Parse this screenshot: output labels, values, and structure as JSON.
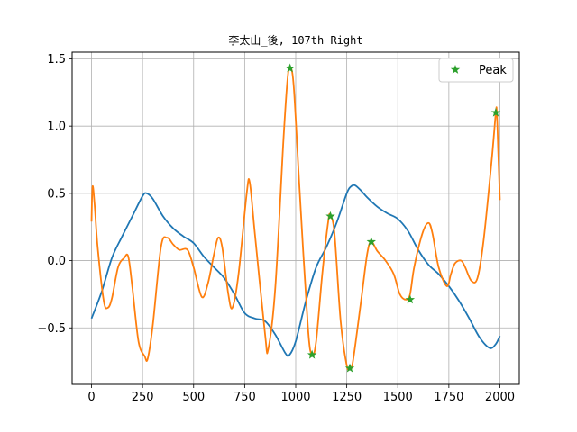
{
  "chart_data": {
    "type": "line",
    "title": "李太山_後, 107th Right",
    "xlabel": "",
    "ylabel": "",
    "xlim": [
      -95,
      2095
    ],
    "ylim": [
      -0.92,
      1.55
    ],
    "xticks": [
      0,
      250,
      500,
      750,
      1000,
      1250,
      1500,
      1750,
      2000
    ],
    "yticks": [
      -0.5,
      0.0,
      0.5,
      1.0,
      1.5
    ],
    "ytick_labels": [
      "−0.5",
      "0.0",
      "0.5",
      "1.0",
      "1.5"
    ],
    "grid": true,
    "legend": {
      "placement": "top-right",
      "entries": [
        "Peak"
      ]
    },
    "series": [
      {
        "color": "#1f77b4",
        "x": [
          0,
          50,
          100,
          150,
          200,
          250,
          270,
          300,
          350,
          400,
          450,
          500,
          550,
          600,
          650,
          700,
          750,
          800,
          850,
          900,
          950,
          970,
          1000,
          1050,
          1100,
          1150,
          1200,
          1250,
          1270,
          1290,
          1320,
          1350,
          1400,
          1450,
          1500,
          1550,
          1600,
          1650,
          1700,
          1750,
          1800,
          1850,
          1900,
          1950,
          1980,
          2000
        ],
        "y": [
          -0.43,
          -0.23,
          0.02,
          0.18,
          0.33,
          0.48,
          0.5,
          0.46,
          0.33,
          0.24,
          0.18,
          0.13,
          0.03,
          -0.05,
          -0.13,
          -0.25,
          -0.39,
          -0.43,
          -0.45,
          -0.55,
          -0.69,
          -0.7,
          -0.6,
          -0.3,
          -0.05,
          0.1,
          0.28,
          0.5,
          0.55,
          0.56,
          0.52,
          0.47,
          0.4,
          0.35,
          0.31,
          0.22,
          0.08,
          -0.03,
          -0.1,
          -0.19,
          -0.3,
          -0.43,
          -0.57,
          -0.65,
          -0.62,
          -0.56
        ]
      },
      {
        "color": "#ff7f0e",
        "x": [
          0,
          5,
          15,
          30,
          60,
          80,
          100,
          130,
          160,
          180,
          200,
          230,
          260,
          275,
          300,
          340,
          370,
          400,
          430,
          470,
          500,
          540,
          570,
          600,
          620,
          640,
          670,
          690,
          720,
          760,
          775,
          800,
          850,
          865,
          900,
          940,
          960,
          972,
          990,
          1020,
          1060,
          1080,
          1100,
          1130,
          1160,
          1170,
          1190,
          1220,
          1250,
          1265,
          1280,
          1320,
          1350,
          1370,
          1400,
          1440,
          1480,
          1510,
          1540,
          1560,
          1580,
          1620,
          1650,
          1670,
          1700,
          1740,
          1760,
          1780,
          1810,
          1830,
          1860,
          1890,
          1920,
          1960,
          1980,
          1985,
          1992,
          2000
        ],
        "y": [
          0.29,
          0.55,
          0.42,
          0.1,
          -0.3,
          -0.35,
          -0.28,
          -0.05,
          0.02,
          0.03,
          -0.2,
          -0.6,
          -0.71,
          -0.73,
          -0.48,
          0.1,
          0.17,
          0.12,
          0.08,
          0.08,
          -0.05,
          -0.27,
          -0.17,
          0.05,
          0.17,
          0.1,
          -0.25,
          -0.35,
          -0.1,
          0.5,
          0.58,
          0.2,
          -0.55,
          -0.66,
          -0.2,
          0.9,
          1.35,
          1.43,
          1.3,
          0.5,
          -0.5,
          -0.7,
          -0.6,
          -0.1,
          0.3,
          0.33,
          0.2,
          -0.45,
          -0.78,
          -0.8,
          -0.75,
          -0.3,
          0.05,
          0.14,
          0.07,
          0.0,
          -0.1,
          -0.25,
          -0.29,
          -0.25,
          -0.05,
          0.2,
          0.28,
          0.2,
          -0.05,
          -0.19,
          -0.1,
          -0.02,
          0.0,
          -0.05,
          -0.15,
          -0.13,
          0.15,
          0.75,
          1.1,
          1.1,
          0.8,
          0.45
        ]
      }
    ],
    "peaks": {
      "name": "Peak",
      "color": "#2ca02c",
      "x": [
        972,
        1080,
        1170,
        1265,
        1370,
        1560,
        1980
      ],
      "y": [
        1.43,
        -0.7,
        0.33,
        -0.8,
        0.14,
        -0.29,
        1.1
      ]
    }
  }
}
